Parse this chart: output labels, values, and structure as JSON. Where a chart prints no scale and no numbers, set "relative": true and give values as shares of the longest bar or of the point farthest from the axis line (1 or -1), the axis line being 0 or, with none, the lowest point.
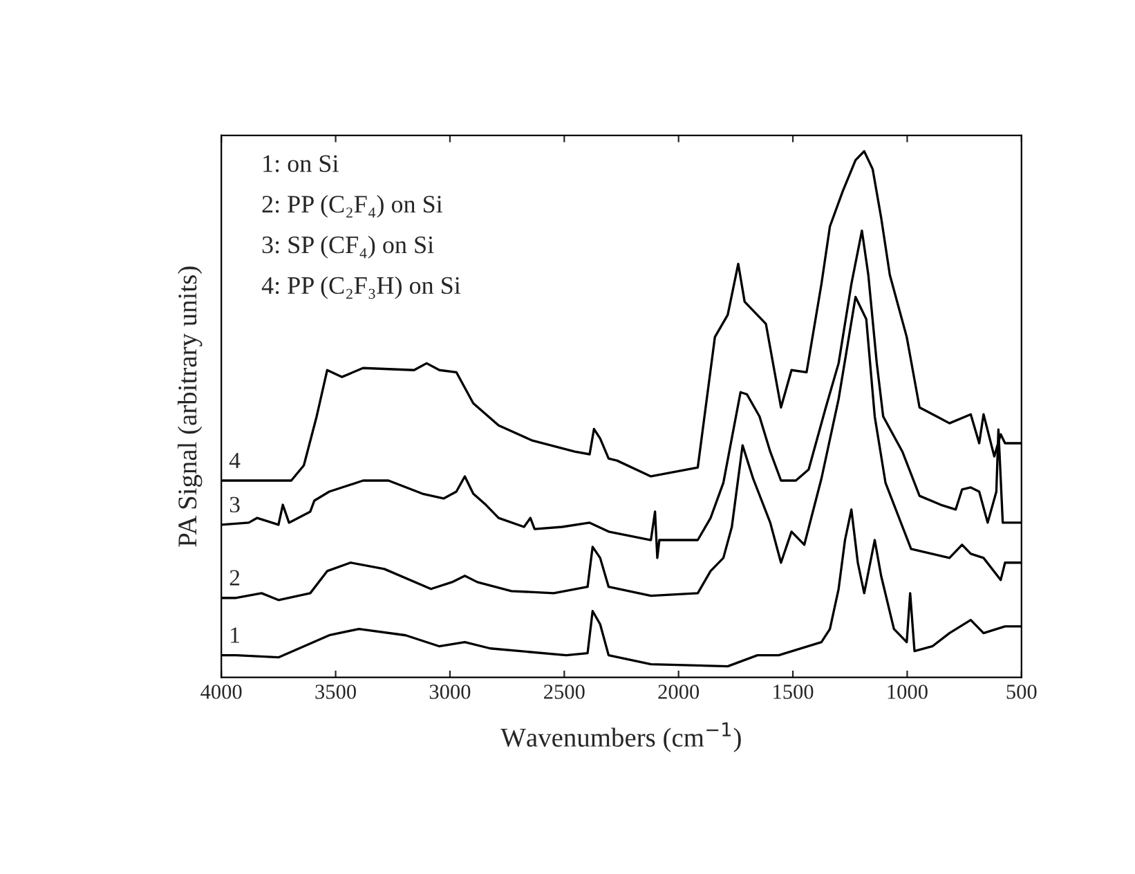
{
  "chart_data": {
    "type": "line",
    "relative": true,
    "xlabel": "Wavenumbers (cm$^{−1}$)",
    "ylabel": "PA Signal (arbitrary units)",
    "xlim": [
      4000,
      500
    ],
    "xticks": [
      4000,
      3500,
      3000,
      2500,
      2000,
      1500,
      1000,
      500
    ],
    "tick_labels": "x",
    "grid": false,
    "legend": false,
    "marker": "none",
    "line_style": "solid",
    "annotations": [
      "1: on Si",
      "2: PP (C₂F₄) on Si",
      "3: SP (CF₄) on Si",
      "4: PP (C₂F₃H) on Si"
    ],
    "series": [
      {
        "name": "1",
        "color": "#000000",
        "x": [
          4000,
          3935,
          3750,
          3528,
          3398,
          3194,
          3046,
          2935,
          2824,
          2491,
          2398,
          2376,
          2343,
          2306,
          2121,
          1785,
          1655,
          1562,
          1375,
          1338,
          1300,
          1272,
          1244,
          1216,
          1188,
          1142,
          1114,
          1058,
          1002,
          987,
          968,
          890,
          815,
          722,
          666,
          572,
          500
        ],
        "values": [
          0.042,
          0.042,
          0.038,
          0.08,
          0.092,
          0.08,
          0.059,
          0.067,
          0.055,
          0.042,
          0.046,
          0.126,
          0.101,
          0.042,
          0.025,
          0.021,
          0.042,
          0.042,
          0.067,
          0.092,
          0.168,
          0.261,
          0.319,
          0.218,
          0.16,
          0.261,
          0.193,
          0.092,
          0.067,
          0.16,
          0.05,
          0.059,
          0.084,
          0.109,
          0.084,
          0.097,
          0.097
        ]
      },
      {
        "name": "2",
        "color": "#000000",
        "x": [
          4000,
          3935,
          3824,
          3750,
          3611,
          3537,
          3435,
          3287,
          3083,
          2991,
          2935,
          2880,
          2731,
          2546,
          2398,
          2376,
          2343,
          2306,
          2121,
          1916,
          1860,
          1804,
          1767,
          1720,
          1674,
          1599,
          1552,
          1506,
          1450,
          1375,
          1300,
          1226,
          1179,
          1142,
          1095,
          983,
          815,
          760,
          722,
          666,
          591,
          572,
          500
        ],
        "values": [
          0.151,
          0.151,
          0.16,
          0.147,
          0.16,
          0.202,
          0.218,
          0.206,
          0.168,
          0.181,
          0.193,
          0.181,
          0.164,
          0.16,
          0.172,
          0.248,
          0.227,
          0.172,
          0.155,
          0.16,
          0.202,
          0.227,
          0.286,
          0.441,
          0.378,
          0.294,
          0.218,
          0.277,
          0.252,
          0.378,
          0.529,
          0.723,
          0.681,
          0.496,
          0.37,
          0.244,
          0.227,
          0.252,
          0.235,
          0.227,
          0.185,
          0.218,
          0.218
        ]
      },
      {
        "name": "3",
        "color": "#000000",
        "x": [
          4000,
          3880,
          3843,
          3750,
          3731,
          3704,
          3611,
          3593,
          3528,
          3380,
          3269,
          3120,
          3028,
          2972,
          2935,
          2898,
          2843,
          2787,
          2676,
          2648,
          2630,
          2509,
          2389,
          2306,
          2121,
          2103,
          2093,
          2084,
          1916,
          1860,
          1804,
          1729,
          1701,
          1646,
          1599,
          1552,
          1487,
          1431,
          1356,
          1300,
          1244,
          1198,
          1170,
          1133,
          1105,
          1021,
          946,
          853,
          788,
          760,
          722,
          685,
          648,
          610,
          601,
          582,
          500
        ],
        "values": [
          0.29,
          0.294,
          0.303,
          0.29,
          0.328,
          0.294,
          0.315,
          0.336,
          0.353,
          0.374,
          0.374,
          0.349,
          0.34,
          0.353,
          0.382,
          0.349,
          0.328,
          0.303,
          0.286,
          0.303,
          0.282,
          0.286,
          0.294,
          0.277,
          0.261,
          0.315,
          0.227,
          0.261,
          0.261,
          0.303,
          0.37,
          0.542,
          0.538,
          0.496,
          0.429,
          0.374,
          0.374,
          0.395,
          0.513,
          0.597,
          0.748,
          0.849,
          0.765,
          0.597,
          0.496,
          0.429,
          0.345,
          0.328,
          0.319,
          0.357,
          0.361,
          0.353,
          0.294,
          0.353,
          0.471,
          0.294,
          0.294
        ]
      },
      {
        "name": "4",
        "color": "#000000",
        "x": [
          4000,
          3694,
          3639,
          3583,
          3537,
          3472,
          3380,
          3157,
          3102,
          3046,
          2972,
          2898,
          2787,
          2639,
          2454,
          2389,
          2370,
          2343,
          2306,
          2269,
          2121,
          1916,
          1841,
          1785,
          1739,
          1711,
          1618,
          1552,
          1506,
          1440,
          1375,
          1338,
          1282,
          1226,
          1188,
          1151,
          1114,
          1076,
          1002,
          946,
          871,
          815,
          722,
          685,
          666,
          619,
          591,
          572,
          500
        ],
        "values": [
          0.374,
          0.374,
          0.403,
          0.496,
          0.584,
          0.571,
          0.588,
          0.584,
          0.597,
          0.584,
          0.58,
          0.521,
          0.479,
          0.45,
          0.429,
          0.424,
          0.472,
          0.454,
          0.416,
          0.412,
          0.382,
          0.399,
          0.647,
          0.689,
          0.786,
          0.714,
          0.672,
          0.513,
          0.584,
          0.58,
          0.748,
          0.857,
          0.924,
          0.983,
          1.0,
          0.966,
          0.874,
          0.765,
          0.647,
          0.513,
          0.496,
          0.483,
          0.5,
          0.445,
          0.5,
          0.42,
          0.462,
          0.445,
          0.445
        ]
      }
    ]
  }
}
